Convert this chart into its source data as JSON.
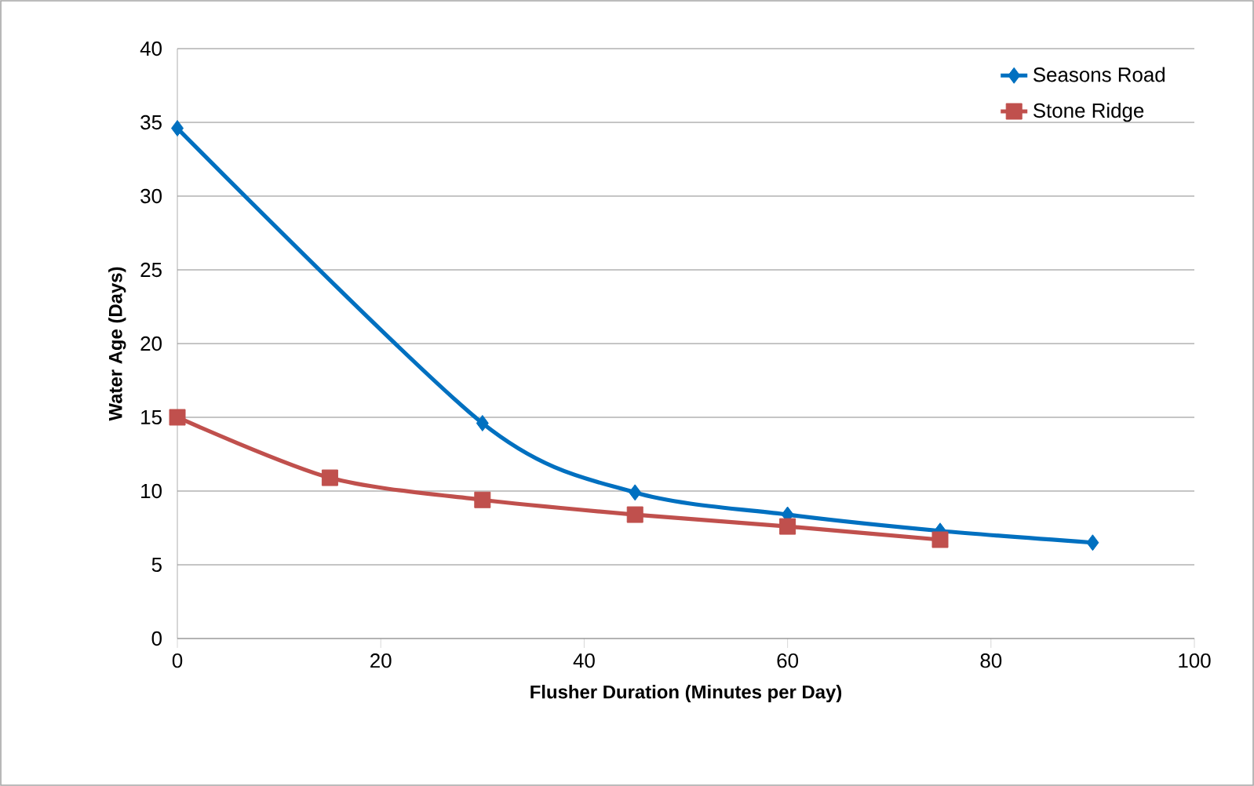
{
  "chart_data": {
    "type": "line",
    "xlabel": "Flusher Duration (Minutes per Day)",
    "ylabel": "Water Age (Days)",
    "xlim": [
      0,
      100
    ],
    "xticks": [
      0,
      20,
      40,
      60,
      80,
      100
    ],
    "ylim": [
      0,
      40
    ],
    "yticks": [
      0,
      5,
      10,
      15,
      20,
      25,
      30,
      35,
      40
    ],
    "grid": "y",
    "legend": "top right",
    "series": [
      {
        "name": "Seasons Road",
        "color": "#0070c0",
        "marker": "diamond",
        "x": [
          0,
          30,
          45,
          60,
          75,
          90
        ],
        "values": [
          34.6,
          14.6,
          9.9,
          8.4,
          7.3,
          6.5
        ]
      },
      {
        "name": "Stone Ridge",
        "color": "#c0504d",
        "marker": "square",
        "x": [
          0,
          15,
          30,
          45,
          60,
          75
        ],
        "values": [
          15.0,
          10.9,
          9.4,
          8.4,
          7.6,
          6.7
        ]
      }
    ]
  }
}
